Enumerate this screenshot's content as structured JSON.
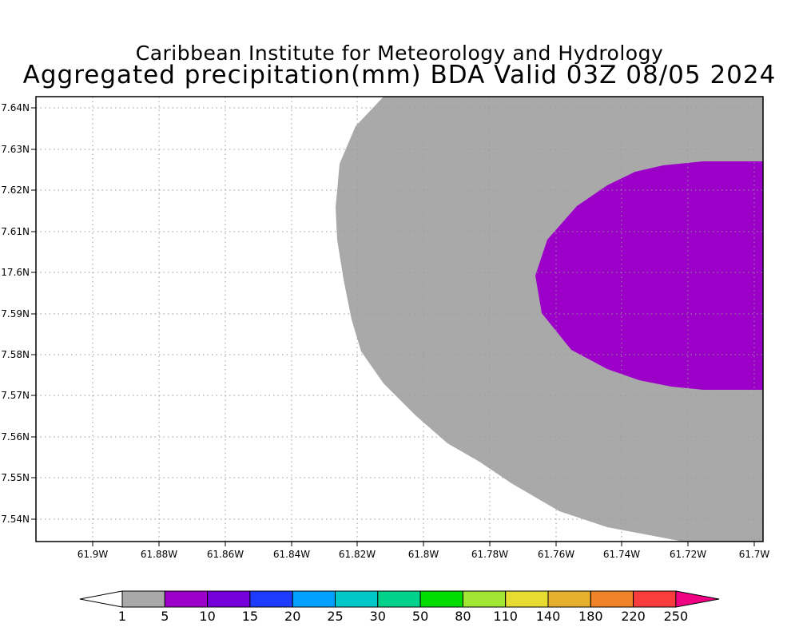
{
  "title_line1": "Caribbean Institute for Meteorology and Hydrology",
  "title_line2": "Aggregated precipitation(mm) BDA Valid 03Z 08/05 2024",
  "map": {
    "lon_labels": [
      "61.9W",
      "61.88W",
      "61.86W",
      "61.84W",
      "61.82W",
      "61.8W",
      "61.78W",
      "61.76W",
      "61.74W",
      "61.72W",
      "61.7W"
    ],
    "lat_labels": [
      "7.64N",
      "7.63N",
      "7.62N",
      "7.61N",
      "17.6N",
      "7.59N",
      "7.58N",
      "7.57N",
      "7.56N",
      "7.55N",
      "7.54N"
    ],
    "grid": true,
    "regions": [
      {
        "name": "precip-region-1-5mm",
        "color": "#a9a9a9",
        "range": "1-5"
      },
      {
        "name": "precip-region-5-10mm",
        "color": "#9c00c8",
        "range": "5-10"
      }
    ]
  },
  "colorbar": {
    "colors": [
      "#a9a9a9",
      "#9c00c8",
      "#7600dc",
      "#1e3cff",
      "#00a0ff",
      "#00c8c8",
      "#00d28c",
      "#00dc00",
      "#a0e632",
      "#e6dc32",
      "#e6af2d",
      "#f08228",
      "#fa3c3c",
      "#f00082"
    ],
    "labels": [
      "1",
      "5",
      "10",
      "15",
      "20",
      "25",
      "30",
      "50",
      "80",
      "110",
      "140",
      "180",
      "220",
      "250"
    ]
  }
}
